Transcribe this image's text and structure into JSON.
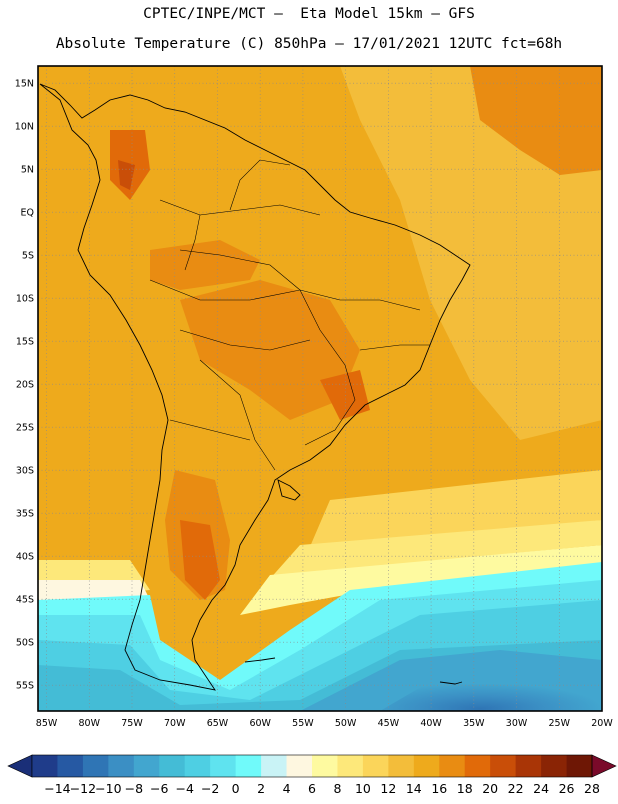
{
  "header": {
    "line1": "CPTEC/INPE/MCT –  Eta Model 15km – GFS",
    "line2": "Absolute Temperature (C) 850hPa – 17/01/2021 12UTC fct=68h"
  },
  "map": {
    "lat_range": [
      -58,
      17
    ],
    "lon_range": [
      -86,
      -20
    ],
    "lat_ticks": [
      "15N",
      "10N",
      "5N",
      "EQ",
      "5S",
      "10S",
      "15S",
      "20S",
      "25S",
      "30S",
      "35S",
      "40S",
      "45S",
      "50S",
      "55S"
    ],
    "lat_values": [
      15,
      10,
      5,
      0,
      -5,
      -10,
      -15,
      -20,
      -25,
      -30,
      -35,
      -40,
      -45,
      -50,
      -55
    ],
    "lon_ticks": [
      "85W",
      "80W",
      "75W",
      "70W",
      "65W",
      "60W",
      "55W",
      "50W",
      "45W",
      "40W",
      "35W",
      "30W",
      "25W",
      "20W"
    ],
    "lon_values": [
      -85,
      -80,
      -75,
      -70,
      -65,
      -60,
      -55,
      -50,
      -45,
      -40,
      -35,
      -30,
      -25,
      -20
    ]
  },
  "colorbar": {
    "labels": [
      "-14",
      "-12",
      "-10",
      "-8",
      "-6",
      "-4",
      "-2",
      "0",
      "2",
      "4",
      "6",
      "8",
      "10",
      "12",
      "14",
      "16",
      "18",
      "20",
      "22",
      "24",
      "26",
      "28"
    ],
    "colors": [
      "#1f3c8a",
      "#2659a3",
      "#2f75b5",
      "#3b8fc4",
      "#42a6cf",
      "#44bcd6",
      "#4ecfe3",
      "#5fe3ef",
      "#70fafa",
      "#c9f3f6",
      "#fef7e0",
      "#fefaa0",
      "#fde87a",
      "#fbd55a",
      "#f3bd3a",
      "#eeaa1c",
      "#e98c12",
      "#e16a09",
      "#c94e08",
      "#a93506",
      "#8a2405",
      "#6e1705"
    ],
    "under_color": "#1a2f78",
    "over_color": "#7a0a2a"
  }
}
